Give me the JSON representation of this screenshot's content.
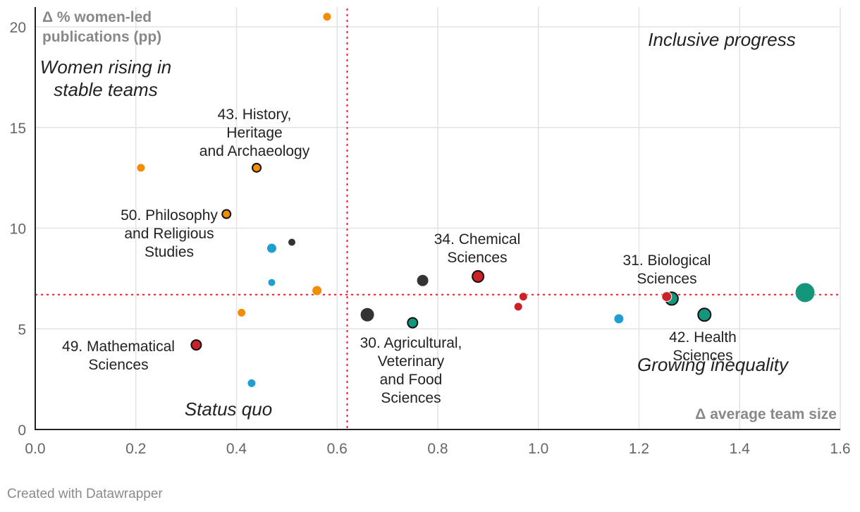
{
  "chart_data": {
    "type": "scatter",
    "xlabel": "Δ average team size",
    "ylabel": "Δ % women-led publications (pp)",
    "xlim": [
      0,
      1.6
    ],
    "ylim": [
      0,
      21
    ],
    "x_ticks": [
      0.0,
      0.2,
      0.4,
      0.6,
      0.8,
      1.0,
      1.2,
      1.4,
      1.6
    ],
    "x_tick_labels": [
      "0.0",
      "0.2",
      "0.4",
      "0.6",
      "0.8",
      "1.0",
      "1.2",
      "1.4",
      "1.6"
    ],
    "y_ticks": [
      0,
      5,
      10,
      15,
      20
    ],
    "y_tick_labels": [
      "0",
      "5",
      "10",
      "15",
      "20"
    ],
    "reference_lines": {
      "x": 0.62,
      "y": 6.7
    },
    "quadrant_labels": [
      {
        "id": "women-rising",
        "lines": [
          "Women rising in",
          "stable teams"
        ]
      },
      {
        "id": "inclusive-progress",
        "lines": [
          "Inclusive progress"
        ]
      },
      {
        "id": "status-quo",
        "lines": [
          "Status quo"
        ]
      },
      {
        "id": "growing-inequality",
        "lines": [
          "Growing inequality"
        ]
      }
    ],
    "colors": {
      "orange": "#f28c00",
      "blue": "#1f9ed1",
      "red": "#cc2127",
      "black": "#333333",
      "green": "#14967c"
    },
    "points": [
      {
        "x": 0.58,
        "y": 20.5,
        "color": "orange",
        "size": 6,
        "outline": false
      },
      {
        "x": 0.21,
        "y": 13.0,
        "color": "orange",
        "size": 6,
        "outline": false
      },
      {
        "x": 0.44,
        "y": 13.0,
        "color": "orange",
        "size": 6,
        "outline": true,
        "label": [
          "43. History,",
          "Heritage",
          "and Archaeology"
        ]
      },
      {
        "x": 0.38,
        "y": 10.7,
        "color": "orange",
        "size": 6,
        "outline": true,
        "label": [
          "50. Philosophy",
          "and Religious",
          "Studies"
        ]
      },
      {
        "x": 0.56,
        "y": 6.9,
        "color": "orange",
        "size": 7,
        "outline": false
      },
      {
        "x": 0.41,
        "y": 5.8,
        "color": "orange",
        "size": 6,
        "outline": false
      },
      {
        "x": 0.47,
        "y": 9.0,
        "color": "blue",
        "size": 7,
        "outline": false
      },
      {
        "x": 0.47,
        "y": 7.3,
        "color": "blue",
        "size": 5.5,
        "outline": false
      },
      {
        "x": 0.43,
        "y": 2.3,
        "color": "blue",
        "size": 6,
        "outline": false
      },
      {
        "x": 1.16,
        "y": 5.5,
        "color": "blue",
        "size": 7,
        "outline": false
      },
      {
        "x": 0.51,
        "y": 9.3,
        "color": "black",
        "size": 5.5,
        "outline": false
      },
      {
        "x": 0.77,
        "y": 7.4,
        "color": "black",
        "size": 8.5,
        "outline": false
      },
      {
        "x": 0.66,
        "y": 5.7,
        "color": "black",
        "size": 10,
        "outline": false
      },
      {
        "x": 0.32,
        "y": 4.2,
        "color": "red",
        "size": 7,
        "outline": true,
        "label": [
          "49. Mathematical",
          "Sciences"
        ]
      },
      {
        "x": 0.88,
        "y": 7.6,
        "color": "red",
        "size": 8,
        "outline": true,
        "label": [
          "34. Chemical",
          "Sciences"
        ]
      },
      {
        "x": 0.97,
        "y": 6.6,
        "color": "red",
        "size": 6,
        "outline": false
      },
      {
        "x": 0.96,
        "y": 6.1,
        "color": "red",
        "size": 6,
        "outline": false
      },
      {
        "x": 1.255,
        "y": 6.6,
        "color": "red",
        "size": 7,
        "outline": false,
        "label": [
          "31. Biological",
          "Sciences"
        ]
      },
      {
        "x": 0.75,
        "y": 5.3,
        "color": "green",
        "size": 7,
        "outline": true,
        "label": [
          "30. Agricultural,",
          "Veterinary",
          "and Food",
          "Sciences"
        ]
      },
      {
        "x": 1.265,
        "y": 6.5,
        "color": "green",
        "size": 9,
        "outline": true
      },
      {
        "x": 1.33,
        "y": 5.7,
        "color": "green",
        "size": 9,
        "outline": true,
        "label": [
          "42. Health",
          "Sciences"
        ]
      },
      {
        "x": 1.53,
        "y": 6.8,
        "color": "green",
        "size": 14,
        "outline": false
      }
    ]
  },
  "footer": {
    "credit": "Created with Datawrapper"
  }
}
